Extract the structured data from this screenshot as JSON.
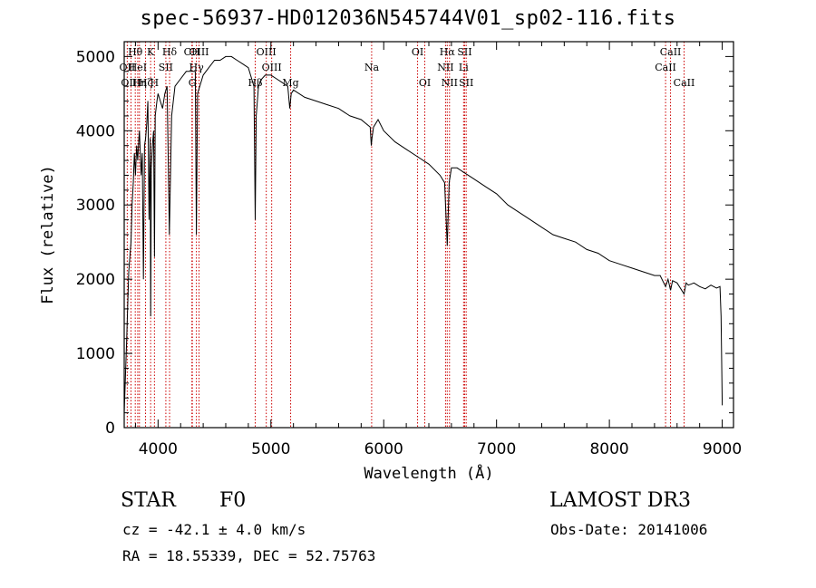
{
  "chart_data": {
    "type": "line",
    "title": "spec-56937-HD012036N545744V01_sp02-116.fits",
    "xlabel": "Wavelength (Å)",
    "ylabel": "Flux (relative)",
    "xlim": [
      3700,
      9100
    ],
    "ylim": [
      0,
      5200
    ],
    "xticks": [
      4000,
      5000,
      6000,
      7000,
      8000,
      9000
    ],
    "yticks": [
      0,
      1000,
      2000,
      3000,
      4000,
      5000
    ],
    "series": [
      {
        "name": "spectrum",
        "x": [
          3700,
          3720,
          3740,
          3750,
          3760,
          3770,
          3780,
          3790,
          3800,
          3810,
          3820,
          3830,
          3835,
          3850,
          3860,
          3870,
          3880,
          3890,
          3900,
          3910,
          3920,
          3930,
          3935,
          3940,
          3950,
          3960,
          3968,
          3975,
          3990,
          4000,
          4020,
          4040,
          4060,
          4080,
          4100,
          4120,
          4150,
          4200,
          4250,
          4300,
          4330,
          4340,
          4350,
          4400,
          4450,
          4500,
          4550,
          4600,
          4650,
          4700,
          4750,
          4800,
          4830,
          4850,
          4861,
          4870,
          4890,
          4920,
          4950,
          5000,
          5050,
          5100,
          5150,
          5167,
          5180,
          5200,
          5300,
          5400,
          5500,
          5600,
          5700,
          5800,
          5880,
          5890,
          5896,
          5910,
          5950,
          6000,
          6100,
          6200,
          6300,
          6400,
          6500,
          6540,
          6563,
          6580,
          6600,
          6650,
          6700,
          6800,
          6900,
          7000,
          7100,
          7200,
          7300,
          7400,
          7500,
          7600,
          7700,
          7800,
          7900,
          8000,
          8100,
          8200,
          8300,
          8400,
          8450,
          8498,
          8520,
          8542,
          8560,
          8600,
          8662,
          8680,
          8700,
          8750,
          8800,
          8850,
          8900,
          8950,
          8980,
          8990,
          9000
        ],
        "y": [
          200,
          1100,
          2100,
          2300,
          2500,
          3000,
          3300,
          3700,
          3400,
          3800,
          3600,
          3900,
          4000,
          3400,
          3700,
          2000,
          3800,
          3900,
          4100,
          4400,
          2800,
          3900,
          1500,
          3500,
          3800,
          4000,
          2300,
          4200,
          4400,
          4500,
          4400,
          4300,
          4500,
          4600,
          2600,
          4200,
          4600,
          4700,
          4800,
          4800,
          4800,
          2600,
          4500,
          4750,
          4850,
          4950,
          4950,
          5000,
          5000,
          4950,
          4900,
          4850,
          4700,
          4600,
          2800,
          4200,
          4600,
          4700,
          4750,
          4750,
          4700,
          4650,
          4600,
          4300,
          4500,
          4550,
          4450,
          4400,
          4350,
          4300,
          4200,
          4150,
          4050,
          3800,
          3900,
          4050,
          4150,
          4000,
          3850,
          3750,
          3650,
          3550,
          3400,
          3300,
          2450,
          3300,
          3500,
          3500,
          3450,
          3350,
          3250,
          3150,
          3000,
          2900,
          2800,
          2700,
          2600,
          2550,
          2500,
          2400,
          2350,
          2250,
          2200,
          2150,
          2100,
          2050,
          2050,
          1900,
          2000,
          1850,
          1980,
          1950,
          1800,
          1950,
          1920,
          1950,
          1900,
          1870,
          1920,
          1880,
          1900,
          1500,
          300
        ]
      }
    ],
    "spectral_lines": [
      {
        "label": "Hθ",
        "wl": 3798,
        "row": 1
      },
      {
        "label": "OII",
        "wl": 3727,
        "row": 2
      },
      {
        "label": "OIII",
        "wl": 3760,
        "row": 3
      },
      {
        "label": "HeI",
        "wl": 3820,
        "row": 2
      },
      {
        "label": "Hη",
        "wl": 3835,
        "row": 3
      },
      {
        "label": "Hζ",
        "wl": 3889,
        "row": 3
      },
      {
        "label": "K",
        "wl": 3934,
        "row": 1
      },
      {
        "label": "H",
        "wl": 3968,
        "row": 3
      },
      {
        "label": "SII",
        "wl": 4069,
        "row": 2
      },
      {
        "label": "Hδ",
        "wl": 4102,
        "row": 1
      },
      {
        "label": "CH",
        "wl": 4300,
        "row": 1
      },
      {
        "label": "G",
        "wl": 4304,
        "row": 3
      },
      {
        "label": "Hγ",
        "wl": 4340,
        "row": 2
      },
      {
        "label": "OIII",
        "wl": 4363,
        "row": 1
      },
      {
        "label": "Hβ",
        "wl": 4861,
        "row": 3
      },
      {
        "label": "OIII",
        "wl": 4959,
        "row": 1
      },
      {
        "label": "OIII",
        "wl": 5007,
        "row": 2
      },
      {
        "label": "Mg",
        "wl": 5175,
        "row": 3
      },
      {
        "label": "Na",
        "wl": 5893,
        "row": 2
      },
      {
        "label": "OI",
        "wl": 6300,
        "row": 1
      },
      {
        "label": "OI",
        "wl": 6364,
        "row": 3
      },
      {
        "label": "NII",
        "wl": 6548,
        "row": 2
      },
      {
        "label": "Hα",
        "wl": 6563,
        "row": 1
      },
      {
        "label": "NII",
        "wl": 6583,
        "row": 3
      },
      {
        "label": "SII",
        "wl": 6717,
        "row": 1
      },
      {
        "label": "Li",
        "wl": 6708,
        "row": 2
      },
      {
        "label": "SII",
        "wl": 6731,
        "row": 3
      },
      {
        "label": "CaII",
        "wl": 8498,
        "row": 2
      },
      {
        "label": "CaII",
        "wl": 8542,
        "row": 1
      },
      {
        "label": "CaII",
        "wl": 8662,
        "row": 3
      }
    ]
  },
  "info": {
    "object_type": "STAR",
    "subclass": "F0",
    "cz": "cz = -42.1 ± 4.0 km/s",
    "coords": "RA =  18.55339, DEC =  52.75763",
    "survey": "LAMOST DR3",
    "obs_date": "Obs-Date: 20141006"
  },
  "colors": {
    "line_marker": "#cc0000",
    "axes": "#000000",
    "spectrum": "#000000"
  }
}
